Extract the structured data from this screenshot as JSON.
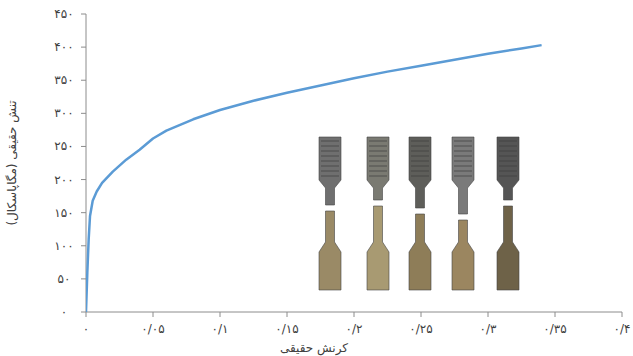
{
  "chart_data": {
    "type": "line",
    "x_label": "کرنش حقیقی",
    "y_label": "تنش حقیقی (مگاپاسکال)",
    "x": [
      0,
      0.001,
      0.002,
      0.003,
      0.005,
      0.008,
      0.012,
      0.02,
      0.03,
      0.04,
      0.05,
      0.06,
      0.08,
      0.1,
      0.125,
      0.15,
      0.175,
      0.2,
      0.225,
      0.25,
      0.275,
      0.3,
      0.325,
      0.34
    ],
    "values": [
      0,
      60,
      110,
      145,
      168,
      182,
      195,
      212,
      230,
      245,
      262,
      274,
      291,
      305,
      319,
      331,
      342,
      353,
      363,
      372,
      381,
      390,
      398,
      403
    ],
    "color": "#5b9bd5",
    "xlim": [
      0,
      0.4
    ],
    "ylim": [
      0,
      450
    ],
    "xticks": [
      {
        "value": 0,
        "label": "۰"
      },
      {
        "value": 0.05,
        "label": "۰/۰۵"
      },
      {
        "value": 0.1,
        "label": "۰/۱"
      },
      {
        "value": 0.15,
        "label": "۰/۱۵"
      },
      {
        "value": 0.2,
        "label": "۰/۲"
      },
      {
        "value": 0.25,
        "label": "۰/۲۵"
      },
      {
        "value": 0.3,
        "label": "۰/۳"
      },
      {
        "value": 0.35,
        "label": "۰/۳۵"
      },
      {
        "value": 0.4,
        "label": "۰/۴"
      }
    ],
    "yticks": [
      {
        "value": 0,
        "label": "۰"
      },
      {
        "value": 50,
        "label": "۵۰"
      },
      {
        "value": 100,
        "label": "۱۰۰"
      },
      {
        "value": 150,
        "label": "۱۵۰"
      },
      {
        "value": 200,
        "label": "۲۰۰"
      },
      {
        "value": 250,
        "label": "۲۵۰"
      },
      {
        "value": 300,
        "label": "۳۰۰"
      },
      {
        "value": 350,
        "label": "۳۵۰"
      },
      {
        "value": 400,
        "label": "۴۰۰"
      },
      {
        "value": 450,
        "label": "۴۵۰"
      }
    ],
    "grid": false
  }
}
